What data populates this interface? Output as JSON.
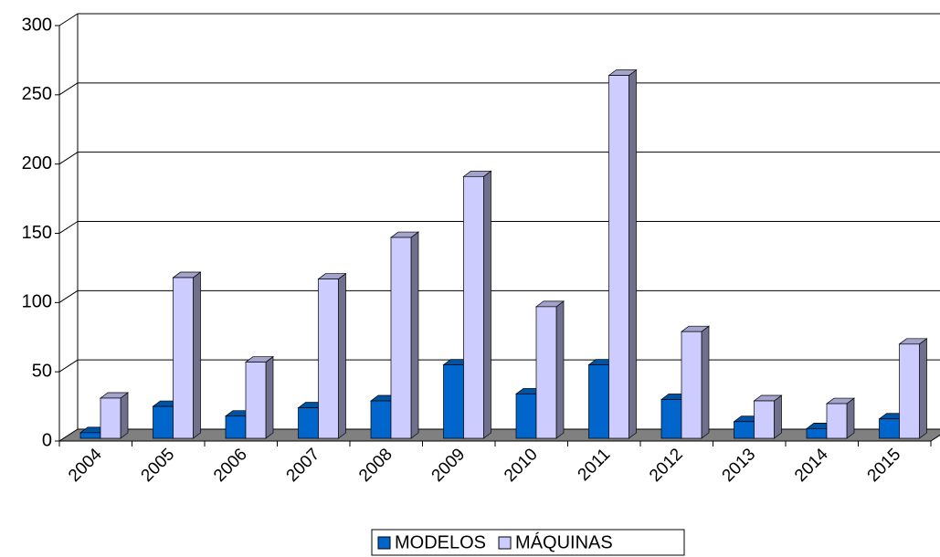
{
  "chart_data": {
    "type": "bar",
    "categories": [
      "2004",
      "2005",
      "2006",
      "2007",
      "2008",
      "2009",
      "2010",
      "2011",
      "2012",
      "2013",
      "2014",
      "2015"
    ],
    "series": [
      {
        "name": "MODELOS",
        "color": "#0066cc",
        "values": [
          6,
          25,
          18,
          24,
          29,
          55,
          34,
          55,
          30,
          14,
          9,
          16
        ]
      },
      {
        "name": "MÁQUINAS",
        "color": "#ccccff",
        "values": [
          31,
          118,
          57,
          117,
          147,
          191,
          97,
          264,
          79,
          29,
          27,
          70
        ]
      }
    ],
    "ylim": [
      0,
      300
    ],
    "yticks": [
      0,
      50,
      100,
      150,
      200,
      250,
      300
    ],
    "grid": true,
    "legend": "bottom"
  }
}
